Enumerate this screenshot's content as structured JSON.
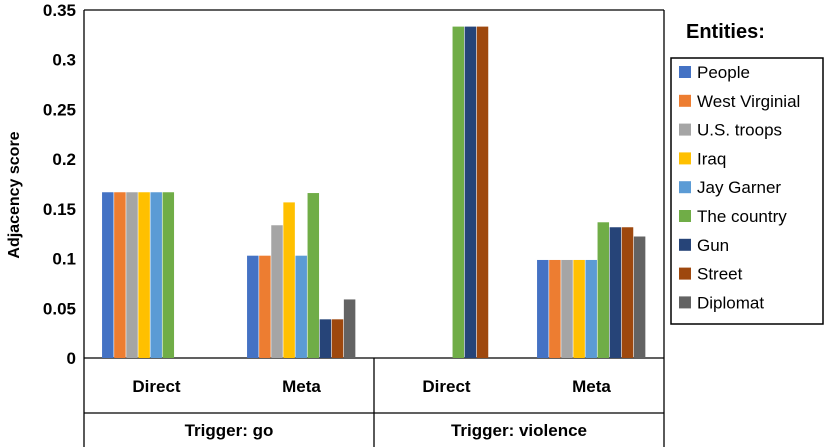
{
  "chart_data": {
    "type": "bar",
    "ylabel": "Adjacency score",
    "ylim": [
      0,
      0.35
    ],
    "yticks": [
      "0",
      "0.05",
      "0.1",
      "0.15",
      "0.2",
      "0.25",
      "0.3",
      "0.35"
    ],
    "groups": [
      {
        "label": "Trigger: go",
        "categories": [
          "Direct",
          "Meta"
        ]
      },
      {
        "label": "Trigger: violence",
        "categories": [
          "Direct",
          "Meta"
        ]
      }
    ],
    "categories": [
      "Direct",
      "Meta",
      "Direct",
      "Meta"
    ],
    "legend": {
      "title": "Entities:",
      "position": "right"
    },
    "series": [
      {
        "name": "People",
        "color": "#4472C4",
        "values": [
          0.1667,
          0.1029,
          null,
          0.0986
        ]
      },
      {
        "name": "West Virginial",
        "color": "#ED7D31",
        "values": [
          0.1667,
          0.1029,
          null,
          0.0986
        ]
      },
      {
        "name": "U.S. troops",
        "color": "#A5A5A5",
        "values": [
          0.1667,
          0.1335,
          null,
          0.0986
        ]
      },
      {
        "name": "Iraq",
        "color": "#FFC000",
        "values": [
          0.1667,
          0.1565,
          null,
          0.0986
        ]
      },
      {
        "name": "Jay Garner",
        "color": "#5B9BD5",
        "values": [
          0.1667,
          0.1029,
          null,
          0.0986
        ]
      },
      {
        "name": "The country",
        "color": "#70AD47",
        "values": [
          0.1667,
          0.1659,
          0.3333,
          0.1365
        ]
      },
      {
        "name": "Gun",
        "color": "#264478",
        "values": [
          null,
          0.0389,
          0.3333,
          0.1315
        ]
      },
      {
        "name": "Street",
        "color": "#9E480E",
        "values": [
          null,
          0.0389,
          0.3333,
          0.1315
        ]
      },
      {
        "name": "Diplomat",
        "color": "#636363",
        "values": [
          null,
          0.0589,
          null,
          0.1222
        ]
      }
    ]
  }
}
